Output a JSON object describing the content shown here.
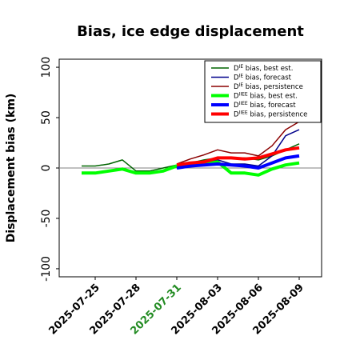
{
  "chart_data": {
    "type": "line",
    "title": "Bias, ice edge displacement",
    "ylabel": "Displacement bias (km)",
    "xlabel": "",
    "ylim": [
      -108,
      108
    ],
    "yticks": [
      -100,
      -50,
      0,
      50,
      100
    ],
    "x": [
      "2025-07-24",
      "2025-07-25",
      "2025-07-26",
      "2025-07-27",
      "2025-07-28",
      "2025-07-29",
      "2025-07-30",
      "2025-07-31",
      "2025-08-01",
      "2025-08-02",
      "2025-08-03",
      "2025-08-04",
      "2025-08-05",
      "2025-08-06",
      "2025-08-07",
      "2025-08-08",
      "2025-08-09"
    ],
    "xticks": [
      "2025-07-25",
      "2025-07-28",
      "2025-07-31",
      "2025-08-03",
      "2025-08-06",
      "2025-08-09"
    ],
    "highlighted_xtick": "2025-07-31",
    "highlight_color": "#228B22",
    "zero_line": true,
    "grid": false,
    "legend_position": "top-right",
    "series": [
      {
        "name_prefix": "D",
        "name_sup": "IE",
        "name_suffix": " bias, best est.",
        "color": "#006400",
        "width": 1.5,
        "values": [
          2,
          2,
          4,
          8,
          -3,
          -3,
          0,
          3,
          5,
          8,
          10,
          10,
          10,
          8,
          12,
          18,
          24
        ]
      },
      {
        "name_prefix": "D",
        "name_sup": "IE",
        "name_suffix": " bias, forecast",
        "color": "#00008B",
        "width": 1.5,
        "values": [
          null,
          null,
          null,
          null,
          null,
          null,
          null,
          0,
          2,
          5,
          8,
          4,
          4,
          2,
          12,
          32,
          38
        ]
      },
      {
        "name_prefix": "D",
        "name_sup": "IE",
        "name_suffix": " bias, persistence",
        "color": "#8B0000",
        "width": 1.5,
        "values": [
          null,
          null,
          null,
          null,
          null,
          null,
          null,
          4,
          9,
          13,
          18,
          15,
          15,
          12,
          22,
          38,
          46
        ]
      },
      {
        "name_prefix": "D",
        "name_sup": "IIEE",
        "name_suffix": " bias, best est.",
        "color": "#00FF00",
        "width": 4,
        "values": [
          -5,
          -5,
          -3,
          -1,
          -5,
          -5,
          -3,
          2,
          3,
          4,
          6,
          -5,
          -5,
          -7,
          -1,
          3,
          5
        ]
      },
      {
        "name_prefix": "D",
        "name_sup": "IIEE",
        "name_suffix": " bias, forecast",
        "color": "#0000FF",
        "width": 4,
        "values": [
          null,
          null,
          null,
          null,
          null,
          null,
          null,
          0,
          2,
          3,
          4,
          3,
          2,
          0,
          5,
          10,
          12
        ]
      },
      {
        "name_prefix": "D",
        "name_sup": "IIEE",
        "name_suffix": " bias, persistence",
        "color": "#FF0000",
        "width": 4,
        "values": [
          null,
          null,
          null,
          null,
          null,
          null,
          null,
          3,
          5,
          6,
          10,
          10,
          9,
          10,
          14,
          18,
          20
        ]
      }
    ]
  }
}
